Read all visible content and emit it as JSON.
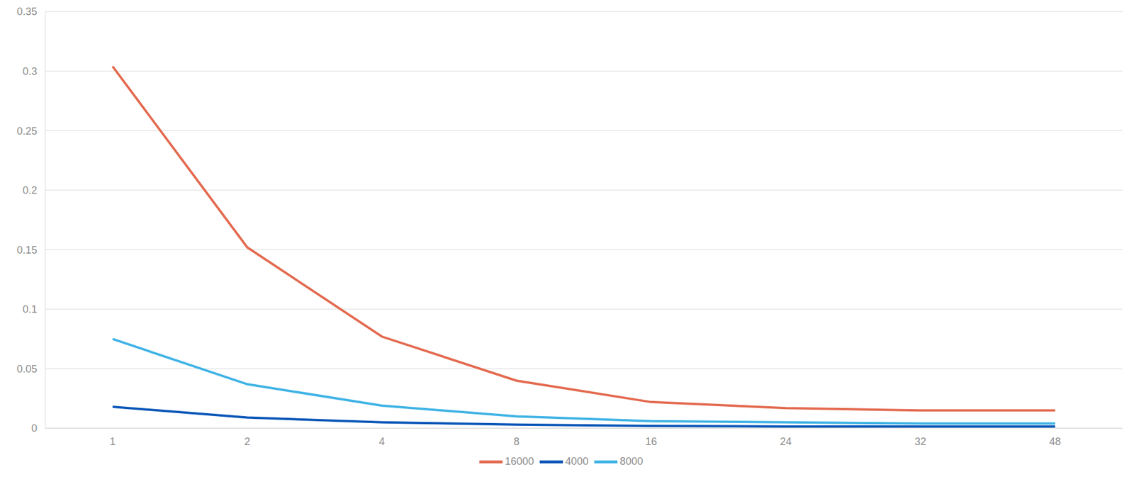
{
  "chart_data": {
    "type": "line",
    "categories": [
      "1",
      "2",
      "4",
      "8",
      "16",
      "24",
      "32",
      "48"
    ],
    "series": [
      {
        "name": "4000",
        "color": "#0a57b8",
        "values": [
          0.018,
          0.009,
          0.005,
          0.003,
          0.002,
          0.0015,
          0.0015,
          0.0015
        ]
      },
      {
        "name": "8000",
        "color": "#3fb3e5",
        "values": [
          0.075,
          0.037,
          0.019,
          0.01,
          0.006,
          0.005,
          0.004,
          0.004
        ]
      },
      {
        "name": "16000",
        "color": "#e36a4f",
        "values": [
          0.304,
          0.152,
          0.077,
          0.04,
          0.022,
          0.017,
          0.015,
          0.015
        ]
      }
    ],
    "ylim": [
      0,
      0.35
    ],
    "yticks": [
      0,
      0.05,
      0.1,
      0.15,
      0.2,
      0.25,
      0.3,
      0.35
    ],
    "grid": true,
    "legend": "bottom"
  }
}
